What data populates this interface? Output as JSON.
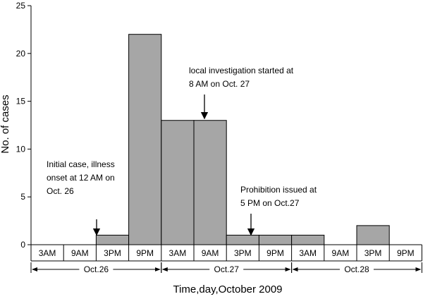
{
  "chart_data": {
    "type": "bar",
    "ylabel": "No. of cases",
    "xlabel": "Time,day,October 2009",
    "ylim": [
      0,
      25
    ],
    "yticks": [
      0,
      5,
      10,
      15,
      20,
      25
    ],
    "bar_color": "#a6a6a6",
    "categories": [
      "3AM",
      "9AM",
      "3PM",
      "9PM",
      "3AM",
      "9AM",
      "3PM",
      "9PM",
      "3AM",
      "9AM",
      "3PM",
      "9PM"
    ],
    "values": [
      0,
      0,
      1,
      22,
      13,
      13,
      1,
      1,
      1,
      0,
      2,
      0
    ],
    "days": [
      {
        "label": "Oct.26",
        "from": 0,
        "to": 3
      },
      {
        "label": "Oct.27",
        "from": 4,
        "to": 7
      },
      {
        "label": "Oct.28",
        "from": 8,
        "to": 11
      }
    ],
    "annotations": [
      {
        "lines": [
          "Initial case, illness",
          "onset at 12 AM on",
          "Oct. 26"
        ],
        "at_bar": 2
      },
      {
        "lines": [
          "local investigation started at",
          "8 AM on Oct. 27"
        ],
        "at_bar": 5
      },
      {
        "lines": [
          "Prohibition issued at",
          "5 PM on Oct.27"
        ],
        "at_bar": 6
      }
    ]
  }
}
